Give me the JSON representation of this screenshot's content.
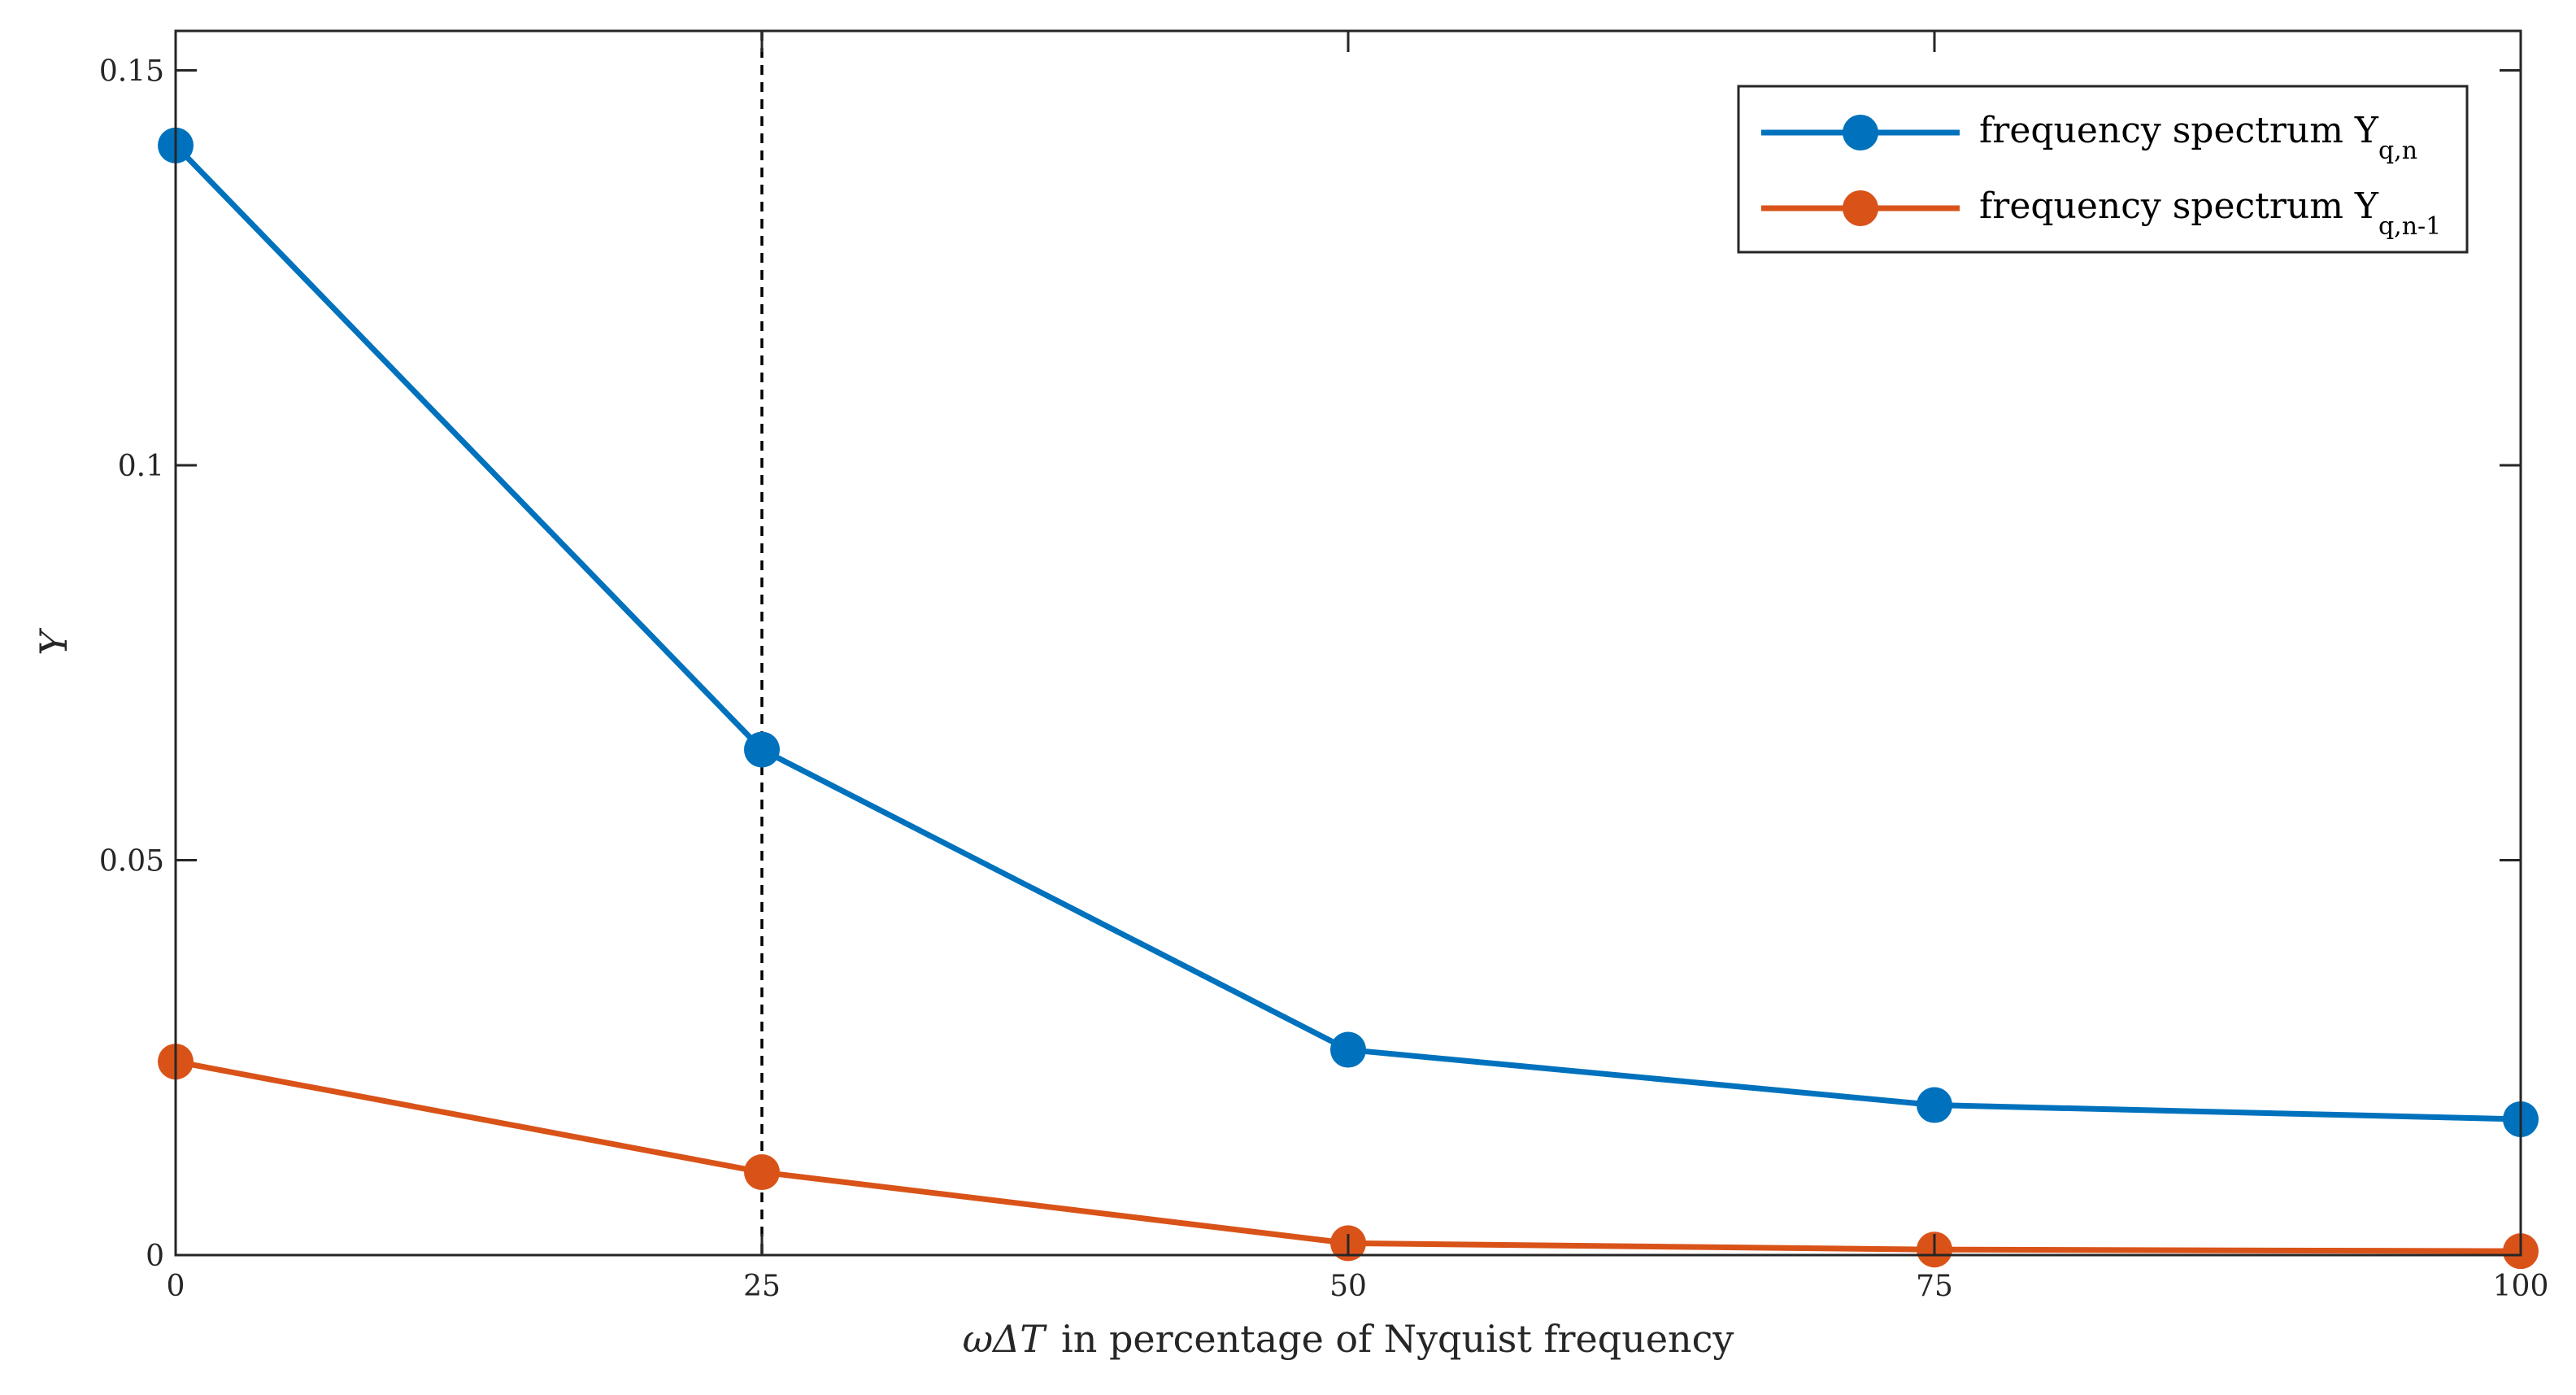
{
  "chart_data": {
    "type": "line",
    "title": "",
    "xlabel": "ωΔT  in percentage of Nyquist frequency",
    "xlabel_var": "ωΔT",
    "xlabel_rest": "in percentage of Nyquist frequency",
    "ylabel": "Y",
    "x": [
      0,
      25,
      50,
      75,
      100
    ],
    "xlim": [
      0,
      100
    ],
    "ylim": [
      0,
      0.155
    ],
    "xticks": [
      0,
      25,
      50,
      75,
      100
    ],
    "xtick_labels": [
      "0",
      "25",
      "50",
      "75",
      "100"
    ],
    "yticks": [
      0,
      0.05,
      0.1,
      0.15
    ],
    "ytick_labels": [
      "0",
      "0.05",
      "0.1",
      "0.15"
    ],
    "grid": false,
    "legend_position": "top-right",
    "reference_line": {
      "x": 25,
      "style": "dashed"
    },
    "series": [
      {
        "name": "frequency spectrum Y_q,n",
        "label_main": "frequency spectrum Y",
        "label_sub": "q,n",
        "color": "#0072BD",
        "values": [
          0.1405,
          0.064,
          0.026,
          0.019,
          0.0172
        ]
      },
      {
        "name": "frequency spectrum Y_q,n-1",
        "label_main": "frequency spectrum Y",
        "label_sub": "q,n-1",
        "color": "#D95319",
        "values": [
          0.0245,
          0.0105,
          0.0015,
          0.0007,
          0.0005
        ]
      }
    ]
  }
}
